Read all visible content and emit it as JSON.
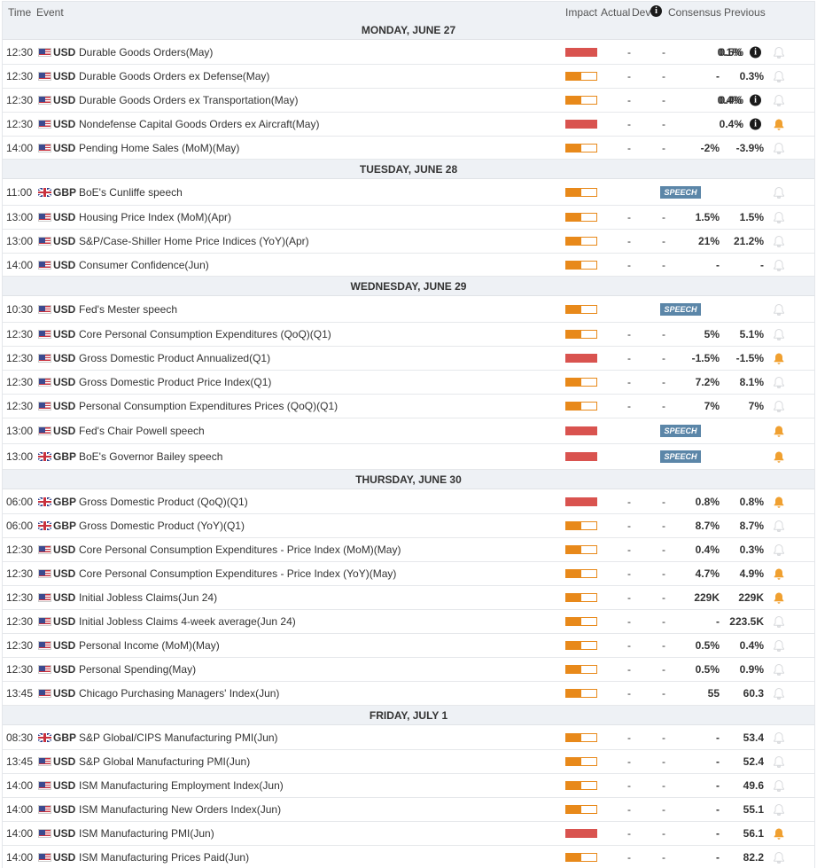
{
  "header": {
    "time": "Time",
    "event": "Event",
    "impact": "Impact",
    "actual": "Actual",
    "dev": "Dev",
    "dev_info": "i",
    "consensus": "Consensus",
    "previous": "Previous"
  },
  "labels": {
    "speech": "SPEECH"
  },
  "colors": {
    "high_impact": "#d9534f",
    "medium_impact": "#e8891a",
    "bell_active": "#f0a030",
    "bell_inactive": "#d8dadd",
    "speech_badge": "#5b86a8",
    "header_bg": "#eef1f5"
  },
  "days": [
    {
      "title": "MONDAY, JUNE 27",
      "events": [
        {
          "time": "12:30",
          "flag": "us",
          "currency": "USD",
          "name": "Durable Goods Orders(May)",
          "impact": "high",
          "actual": "-",
          "dev": "-",
          "consensus": "0.1%",
          "previous": "0.5%",
          "info": true,
          "bell": false
        },
        {
          "time": "12:30",
          "flag": "us",
          "currency": "USD",
          "name": "Durable Goods Orders ex Defense(May)",
          "impact": "medium",
          "actual": "-",
          "dev": "-",
          "consensus": "-",
          "previous": "0.3%",
          "info": false,
          "bell": false
        },
        {
          "time": "12:30",
          "flag": "us",
          "currency": "USD",
          "name": "Durable Goods Orders ex Transportation(May)",
          "impact": "medium",
          "actual": "-",
          "dev": "-",
          "consensus": "0.4%",
          "previous": "0.4%",
          "info": true,
          "bell": false
        },
        {
          "time": "12:30",
          "flag": "us",
          "currency": "USD",
          "name": "Nondefense Capital Goods Orders ex Aircraft(May)",
          "impact": "high",
          "actual": "-",
          "dev": "-",
          "consensus": "-",
          "previous": "0.4%",
          "info": true,
          "bell": true
        },
        {
          "time": "14:00",
          "flag": "us",
          "currency": "USD",
          "name": "Pending Home Sales (MoM)(May)",
          "impact": "medium",
          "actual": "-",
          "dev": "-",
          "consensus": "-2%",
          "previous": "-3.9%",
          "info": false,
          "bell": false
        }
      ]
    },
    {
      "title": "TUESDAY, JUNE 28",
      "events": [
        {
          "time": "11:00",
          "flag": "gb",
          "currency": "GBP",
          "name": "BoE's Cunliffe speech",
          "impact": "medium",
          "speech": true,
          "bell": false
        },
        {
          "time": "13:00",
          "flag": "us",
          "currency": "USD",
          "name": "Housing Price Index (MoM)(Apr)",
          "impact": "medium",
          "actual": "-",
          "dev": "-",
          "consensus": "1.5%",
          "previous": "1.5%",
          "bell": false
        },
        {
          "time": "13:00",
          "flag": "us",
          "currency": "USD",
          "name": "S&P/Case-Shiller Home Price Indices (YoY)(Apr)",
          "impact": "medium",
          "actual": "-",
          "dev": "-",
          "consensus": "21%",
          "previous": "21.2%",
          "bell": false
        },
        {
          "time": "14:00",
          "flag": "us",
          "currency": "USD",
          "name": "Consumer Confidence(Jun)",
          "impact": "medium",
          "actual": "-",
          "dev": "-",
          "consensus": "-",
          "previous": "-",
          "bell": false
        }
      ]
    },
    {
      "title": "WEDNESDAY, JUNE 29",
      "events": [
        {
          "time": "10:30",
          "flag": "us",
          "currency": "USD",
          "name": "Fed's Mester speech",
          "impact": "medium",
          "speech": true,
          "bell": false
        },
        {
          "time": "12:30",
          "flag": "us",
          "currency": "USD",
          "name": "Core Personal Consumption Expenditures (QoQ)(Q1)",
          "impact": "medium",
          "actual": "-",
          "dev": "-",
          "consensus": "5%",
          "previous": "5.1%",
          "bell": false
        },
        {
          "time": "12:30",
          "flag": "us",
          "currency": "USD",
          "name": "Gross Domestic Product Annualized(Q1)",
          "impact": "high",
          "actual": "-",
          "dev": "-",
          "consensus": "-1.5%",
          "previous": "-1.5%",
          "bell": true
        },
        {
          "time": "12:30",
          "flag": "us",
          "currency": "USD",
          "name": "Gross Domestic Product Price Index(Q1)",
          "impact": "medium",
          "actual": "-",
          "dev": "-",
          "consensus": "7.2%",
          "previous": "8.1%",
          "bell": false
        },
        {
          "time": "12:30",
          "flag": "us",
          "currency": "USD",
          "name": "Personal Consumption Expenditures Prices (QoQ)(Q1)",
          "impact": "medium",
          "actual": "-",
          "dev": "-",
          "consensus": "7%",
          "previous": "7%",
          "bell": false
        },
        {
          "time": "13:00",
          "flag": "us",
          "currency": "USD",
          "name": "Fed's Chair Powell speech",
          "impact": "high",
          "speech": true,
          "bell": true
        },
        {
          "time": "13:00",
          "flag": "gb",
          "currency": "GBP",
          "name": "BoE's Governor Bailey speech",
          "impact": "high",
          "speech": true,
          "bell": true
        }
      ]
    },
    {
      "title": "THURSDAY, JUNE 30",
      "events": [
        {
          "time": "06:00",
          "flag": "gb",
          "currency": "GBP",
          "name": "Gross Domestic Product (QoQ)(Q1)",
          "impact": "high",
          "actual": "-",
          "dev": "-",
          "consensus": "0.8%",
          "previous": "0.8%",
          "bell": true
        },
        {
          "time": "06:00",
          "flag": "gb",
          "currency": "GBP",
          "name": "Gross Domestic Product (YoY)(Q1)",
          "impact": "medium",
          "actual": "-",
          "dev": "-",
          "consensus": "8.7%",
          "previous": "8.7%",
          "bell": false
        },
        {
          "time": "12:30",
          "flag": "us",
          "currency": "USD",
          "name": "Core Personal Consumption Expenditures - Price Index (MoM)(May)",
          "impact": "medium",
          "actual": "-",
          "dev": "-",
          "consensus": "0.4%",
          "previous": "0.3%",
          "bell": false
        },
        {
          "time": "12:30",
          "flag": "us",
          "currency": "USD",
          "name": "Core Personal Consumption Expenditures - Price Index (YoY)(May)",
          "impact": "medium",
          "actual": "-",
          "dev": "-",
          "consensus": "4.7%",
          "previous": "4.9%",
          "bell": true
        },
        {
          "time": "12:30",
          "flag": "us",
          "currency": "USD",
          "name": "Initial Jobless Claims(Jun 24)",
          "impact": "medium",
          "actual": "-",
          "dev": "-",
          "consensus": "229K",
          "previous": "229K",
          "bell": true
        },
        {
          "time": "12:30",
          "flag": "us",
          "currency": "USD",
          "name": "Initial Jobless Claims 4-week average(Jun 24)",
          "impact": "medium",
          "actual": "-",
          "dev": "-",
          "consensus": "-",
          "previous": "223.5K",
          "bell": false
        },
        {
          "time": "12:30",
          "flag": "us",
          "currency": "USD",
          "name": "Personal Income (MoM)(May)",
          "impact": "medium",
          "actual": "-",
          "dev": "-",
          "consensus": "0.5%",
          "previous": "0.4%",
          "bell": false
        },
        {
          "time": "12:30",
          "flag": "us",
          "currency": "USD",
          "name": "Personal Spending(May)",
          "impact": "medium",
          "actual": "-",
          "dev": "-",
          "consensus": "0.5%",
          "previous": "0.9%",
          "bell": false
        },
        {
          "time": "13:45",
          "flag": "us",
          "currency": "USD",
          "name": "Chicago Purchasing Managers' Index(Jun)",
          "impact": "medium",
          "actual": "-",
          "dev": "-",
          "consensus": "55",
          "previous": "60.3",
          "bell": false
        }
      ]
    },
    {
      "title": "FRIDAY, JULY 1",
      "events": [
        {
          "time": "08:30",
          "flag": "gb",
          "currency": "GBP",
          "name": "S&P Global/CIPS Manufacturing PMI(Jun)",
          "impact": "medium",
          "actual": "-",
          "dev": "-",
          "consensus": "-",
          "previous": "53.4",
          "bell": false
        },
        {
          "time": "13:45",
          "flag": "us",
          "currency": "USD",
          "name": "S&P Global Manufacturing PMI(Jun)",
          "impact": "medium",
          "actual": "-",
          "dev": "-",
          "consensus": "-",
          "previous": "52.4",
          "bell": false
        },
        {
          "time": "14:00",
          "flag": "us",
          "currency": "USD",
          "name": "ISM Manufacturing Employment Index(Jun)",
          "impact": "medium",
          "actual": "-",
          "dev": "-",
          "consensus": "-",
          "previous": "49.6",
          "bell": false
        },
        {
          "time": "14:00",
          "flag": "us",
          "currency": "USD",
          "name": "ISM Manufacturing New Orders Index(Jun)",
          "impact": "medium",
          "actual": "-",
          "dev": "-",
          "consensus": "-",
          "previous": "55.1",
          "bell": false
        },
        {
          "time": "14:00",
          "flag": "us",
          "currency": "USD",
          "name": "ISM Manufacturing PMI(Jun)",
          "impact": "high",
          "actual": "-",
          "dev": "-",
          "consensus": "-",
          "previous": "56.1",
          "bell": true
        },
        {
          "time": "14:00",
          "flag": "us",
          "currency": "USD",
          "name": "ISM Manufacturing Prices Paid(Jun)",
          "impact": "medium",
          "actual": "-",
          "dev": "-",
          "consensus": "-",
          "previous": "82.2",
          "bell": false
        }
      ]
    }
  ]
}
